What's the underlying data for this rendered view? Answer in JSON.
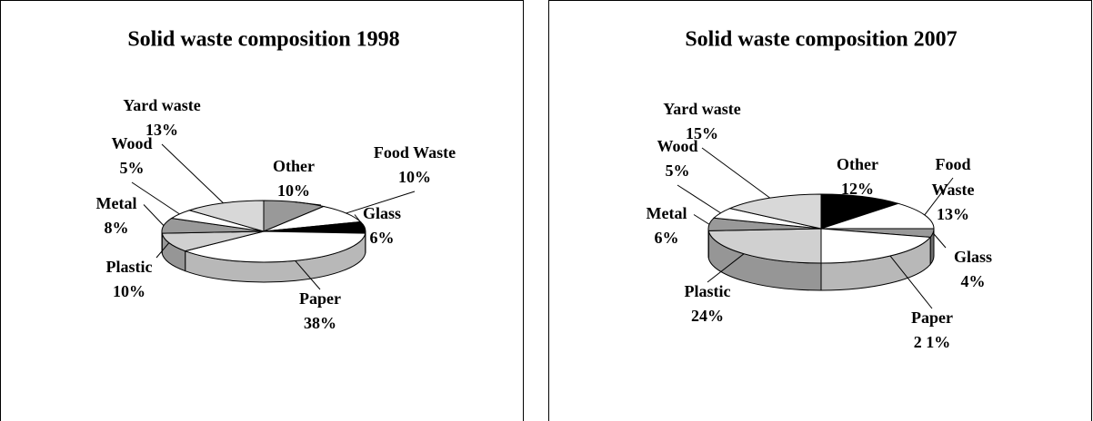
{
  "chart_data": [
    {
      "type": "pie",
      "title": "Solid waste composition 1998",
      "categories": [
        "Other",
        "Food Waste",
        "Glass",
        "Paper",
        "Plastic",
        "Metal",
        "Wood",
        "Yard waste"
      ],
      "values": [
        10,
        10,
        6,
        38,
        10,
        8,
        5,
        13
      ],
      "value_labels": [
        "10%",
        "10%",
        "6%",
        "38%",
        "10%",
        "8%",
        "5%",
        "13%"
      ],
      "colors": [
        "#999999",
        "#ffffff",
        "#000000",
        "#ffffff",
        "#d0d0d0",
        "#999999",
        "#ffffff",
        "#d8d8d8"
      ]
    },
    {
      "type": "pie",
      "title": "Solid waste composition 2007",
      "categories": [
        "Other",
        "Food Waste",
        "Glass",
        "Paper",
        "Plastic",
        "Metal",
        "Wood",
        "Yard waste"
      ],
      "values": [
        12,
        13,
        4,
        21,
        24,
        6,
        5,
        15
      ],
      "value_labels": [
        "12%",
        "13%",
        "4%",
        "2 1%",
        "24%",
        "6%",
        "5%",
        "15%"
      ],
      "colors": [
        "#000000",
        "#ffffff",
        "#999999",
        "#ffffff",
        "#d0d0d0",
        "#999999",
        "#ffffff",
        "#d8d8d8"
      ]
    }
  ]
}
